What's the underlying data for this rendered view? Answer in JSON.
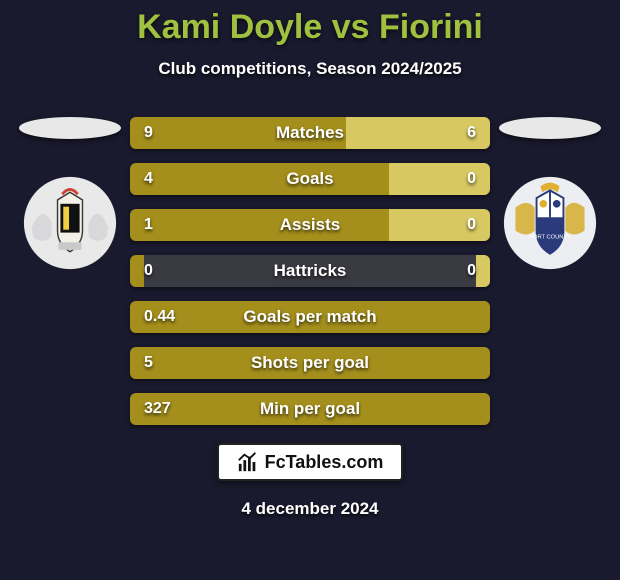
{
  "colors": {
    "page_bg": "#1a1a2e",
    "title": "#9fc13f",
    "bar_left": "#a48f1c",
    "bar_right": "#d7c862",
    "bar_empty": "#3a3a42",
    "ellipse": "#e8e8e8",
    "brand_bg": "#ffffff",
    "brand_text": "#111111"
  },
  "title": "Kami Doyle vs Fiorini",
  "subtitle": "Club competitions, Season 2024/2025",
  "player_left": {
    "name": "Kami Doyle"
  },
  "player_right": {
    "name": "Fiorini"
  },
  "stats": [
    {
      "label": "Matches",
      "left_val": "9",
      "right_val": "6",
      "left_pct": 60,
      "right_pct": 40
    },
    {
      "label": "Goals",
      "left_val": "4",
      "right_val": "0",
      "left_pct": 72,
      "right_pct": 28
    },
    {
      "label": "Assists",
      "left_val": "1",
      "right_val": "0",
      "left_pct": 72,
      "right_pct": 28
    },
    {
      "label": "Hattricks",
      "left_val": "0",
      "right_val": "0",
      "left_pct": 4,
      "right_pct": 4
    },
    {
      "label": "Goals per match",
      "left_val": "0.44",
      "right_val": "",
      "left_pct": 100,
      "right_pct": 0
    },
    {
      "label": "Shots per goal",
      "left_val": "5",
      "right_val": "",
      "left_pct": 100,
      "right_pct": 0
    },
    {
      "label": "Min per goal",
      "left_val": "327",
      "right_val": "",
      "left_pct": 100,
      "right_pct": 0
    }
  ],
  "brand": "FcTables.com",
  "date": "4 december 2024"
}
